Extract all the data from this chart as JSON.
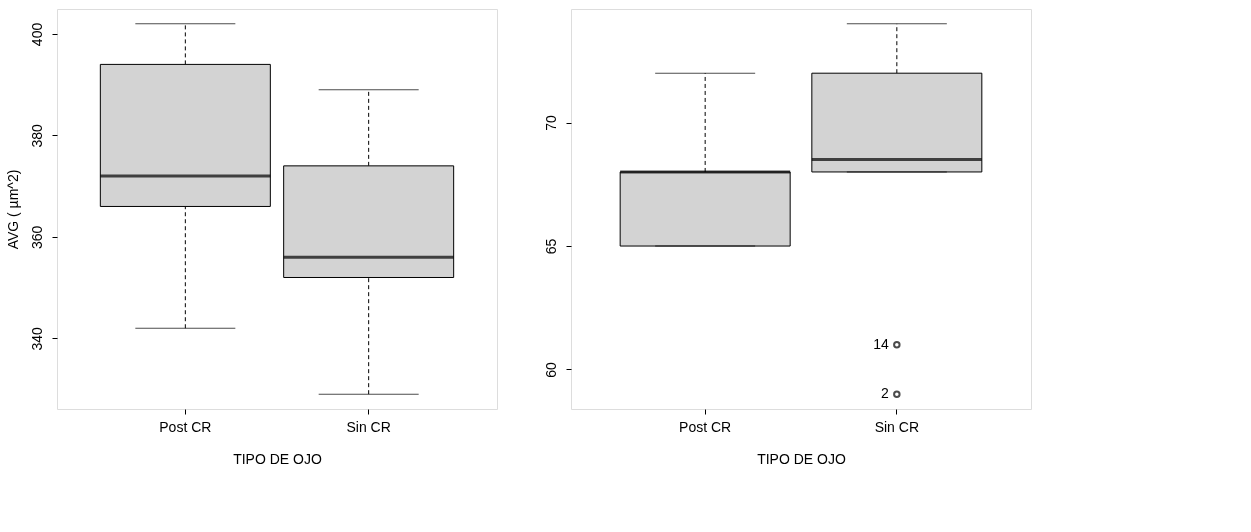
{
  "chart_data": [
    {
      "type": "box",
      "categories": [
        "Post CR",
        "Sin CR"
      ],
      "xlabel": "TIPO DE OJO",
      "ylabel": "AVG ( µm^2)",
      "ylim": [
        326.08,
        404.92
      ],
      "yticks": [
        340,
        360,
        380,
        400
      ],
      "grid": false,
      "series": [
        {
          "color": "#d3d3d3",
          "boxes": [
            {
              "low": 342,
              "q1": 366,
              "median": 372,
              "q3": 394,
              "high": 402
            },
            {
              "low": 329,
              "q1": 352,
              "median": 356,
              "q3": 374,
              "high": 389
            }
          ]
        }
      ]
    },
    {
      "type": "box",
      "categories": [
        "Post CR",
        "Sin CR"
      ],
      "xlabel": "TIPO DE OJO",
      "ylim": [
        58.4,
        74.6
      ],
      "yticks": [
        60,
        65,
        70
      ],
      "grid": false,
      "series": [
        {
          "color": "#d3d3d3",
          "boxes": [
            {
              "low": 65,
              "q1": 65,
              "median": 68,
              "q3": 68,
              "high": 72
            },
            {
              "low": 68,
              "q1": 68,
              "median": 68.5,
              "q3": 72,
              "high": 74,
              "outliers": [
                61,
                59
              ]
            }
          ]
        }
      ],
      "annotations": [
        "14",
        "2"
      ]
    }
  ]
}
